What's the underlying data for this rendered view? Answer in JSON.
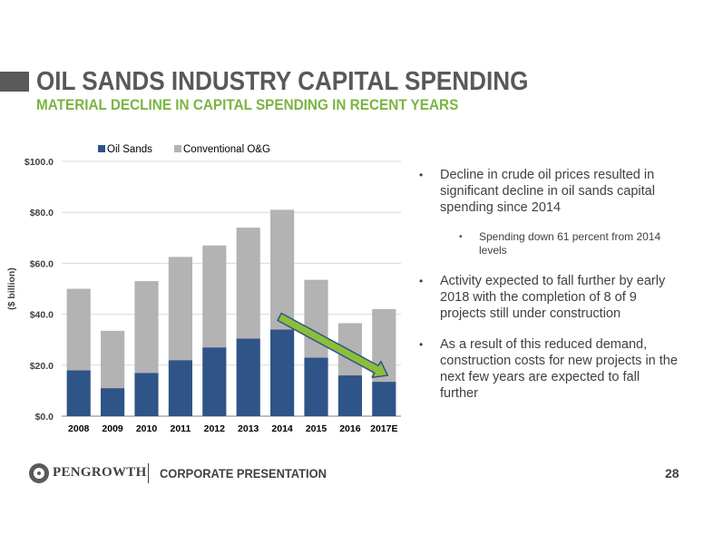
{
  "slide": {
    "title": "OIL SANDS INDUSTRY CAPITAL SPENDING",
    "subtitle": "MATERIAL DECLINE IN CAPITAL SPENDING IN RECENT YEARS",
    "page_number": "28"
  },
  "footer": {
    "logo_text": "PENGROWTH",
    "label": "CORPORATE PRESENTATION"
  },
  "bullets": [
    {
      "level": 1,
      "text": "Decline in crude oil prices resulted in significant decline in oil sands capital spending since 2014"
    },
    {
      "level": 2,
      "text": "Spending down 61 percent from 2014 levels"
    },
    {
      "level": 1,
      "text": "Activity expected to fall further by early 2018 with the completion of 8 of 9 projects still under construction"
    },
    {
      "level": 1,
      "text": "As a result of this reduced demand, construction costs for new projects in the next few years are expected to fall further"
    }
  ],
  "colors": {
    "oil_sands": "#2F5487",
    "conventional": "#B3B3B3",
    "accent_green": "#7AB441",
    "arrow_fill": "#8DBE3A",
    "arrow_stroke": "#2F5487"
  },
  "chart_data": {
    "type": "bar",
    "stacked": true,
    "categories": [
      "2008",
      "2009",
      "2010",
      "2011",
      "2012",
      "2013",
      "2014",
      "2015",
      "2016",
      "2017E"
    ],
    "series": [
      {
        "name": "Oil Sands",
        "values": [
          18,
          11,
          17,
          22,
          27,
          30.5,
          34,
          23,
          16,
          13.5
        ]
      },
      {
        "name": "Conventional O&G",
        "values": [
          32,
          22.5,
          36,
          40.5,
          40,
          43.5,
          47,
          30.5,
          20.5,
          28.5
        ]
      }
    ],
    "ylabel": "($ billion)",
    "ylim": [
      0,
      100
    ],
    "yticks": [
      0,
      20,
      40,
      60,
      80,
      100
    ],
    "ytick_labels": [
      "$0.0",
      "$20.0",
      "$40.0",
      "$60.0",
      "$80.0",
      "$100.0"
    ],
    "grid": true,
    "legend": "top",
    "annotations": [
      {
        "type": "arrow",
        "from": "2014",
        "to": "2017E",
        "meaning": "decline"
      }
    ]
  }
}
